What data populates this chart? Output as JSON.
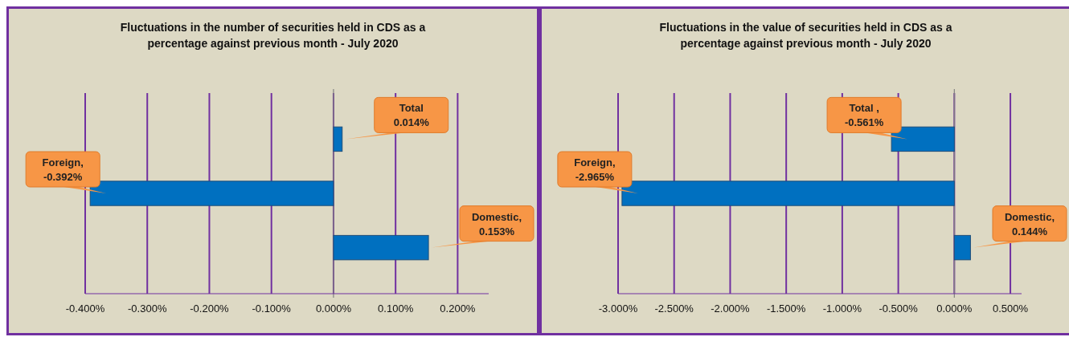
{
  "chart_data": [
    {
      "type": "bar",
      "orientation": "horizontal",
      "title": "Fluctuations in the number of securities held in CDS as a percentage against previous month - July 2020",
      "categories": [
        null,
        null,
        null
      ],
      "values": [
        0.014,
        -0.392,
        0.153
      ],
      "color": "#0070c0",
      "xlim": [
        -0.4,
        0.25
      ],
      "xticks": [
        {
          "value": -0.4,
          "label": "-0.400%"
        },
        {
          "value": -0.3,
          "label": "-0.300%"
        },
        {
          "value": -0.2,
          "label": "-0.200%"
        },
        {
          "value": -0.1,
          "label": "-0.100%"
        },
        {
          "value": 0,
          "label": "0.000%"
        },
        {
          "value": 0.1,
          "label": "0.100%"
        },
        {
          "value": 0.2,
          "label": "0.200%"
        }
      ],
      "grid": "x",
      "tick_labels": "x",
      "legend": false,
      "annotations": [
        "Total 0.014%",
        "Foreign, -0.392%",
        "Domestic, 0.153%"
      ]
    },
    {
      "type": "bar",
      "orientation": "horizontal",
      "title": "Fluctuations in the value of securities held in CDS as a percentage against previous month - July 2020",
      "categories": [
        null,
        null,
        null
      ],
      "values": [
        -0.561,
        -2.965,
        0.144
      ],
      "color": "#0070c0",
      "xlim": [
        -3,
        0.6
      ],
      "xticks": [
        {
          "value": -3,
          "label": "-3.000%"
        },
        {
          "value": -2.5,
          "label": "-2.500%"
        },
        {
          "value": -2,
          "label": "-2.000%"
        },
        {
          "value": -1.5,
          "label": "-1.500%"
        },
        {
          "value": -1,
          "label": "-1.000%"
        },
        {
          "value": -0.5,
          "label": "-0.500%"
        },
        {
          "value": 0,
          "label": "0.000%"
        },
        {
          "value": 0.5,
          "label": "0.500%"
        }
      ],
      "grid": "x",
      "tick_labels": "x",
      "legend": false,
      "annotations": [
        "Total , -0.561%",
        "Foreign, -2.965%",
        "Domestic, 0.144%"
      ]
    }
  ]
}
